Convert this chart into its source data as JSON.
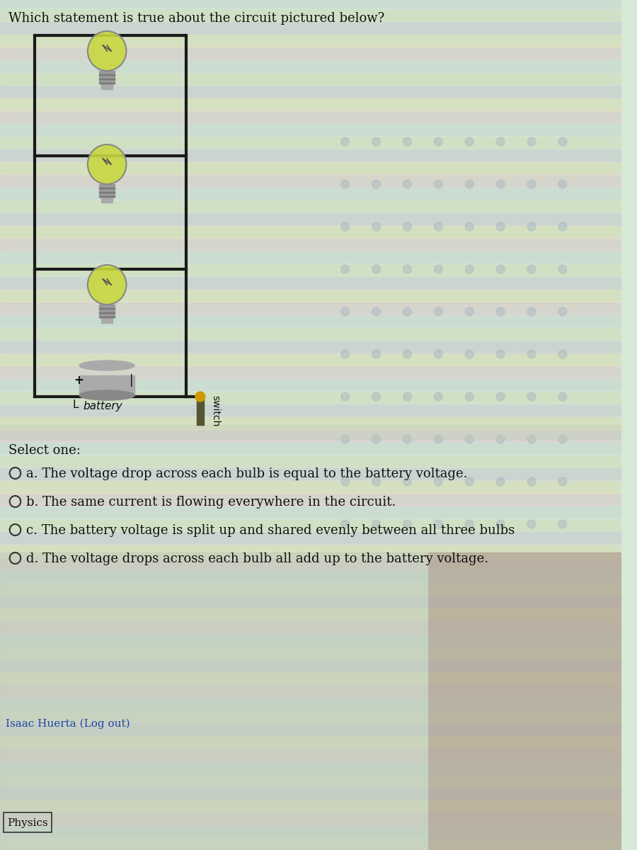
{
  "title": "Which statement is true about the circuit pictured below?",
  "select_label": "Select one:",
  "options": [
    "a. The voltage drop across each bulb is equal to the battery voltage.",
    "b. The same current is flowing everywhere in the circuit.",
    "c. The battery voltage is split up and shared evenly between all three bulbs",
    "d. The voltage drops across each bulb all add up to the battery voltage."
  ],
  "footer_left": "Isaac Huerta (Log out)",
  "footer_subject": "Physics",
  "battery_label": "battery",
  "switch_label": "switch",
  "bg_color_main": "#d8e8d8",
  "bg_color_right": "#c8d4c0",
  "bg_color_bottom_left": "#c8d4c0",
  "bg_color_bottom_right": "#b8a898",
  "title_fontsize": 13,
  "option_fontsize": 13
}
